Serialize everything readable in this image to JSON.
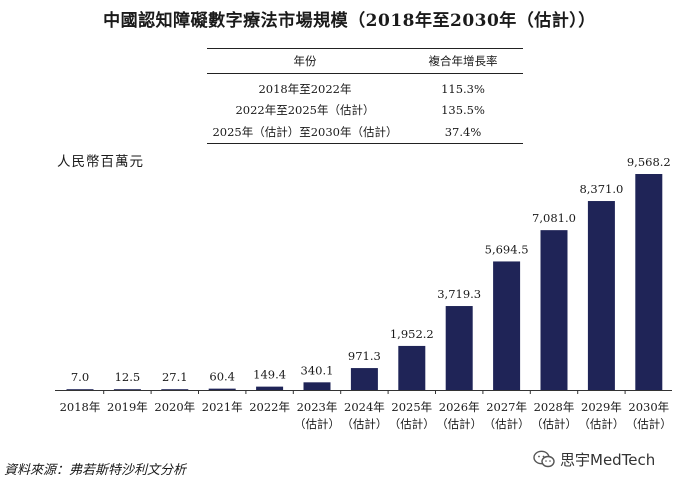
{
  "title": "中國認知障礙數字療法市場規模（2018年至2030年（估計））",
  "cagr_table": {
    "headers": [
      "年份",
      "複合年增長率"
    ],
    "rows": [
      [
        "2018年至2022年",
        "115.3%"
      ],
      [
        "2022年至2025年（估計）",
        "135.5%"
      ],
      [
        "2025年（估計）至2030年（估計）",
        "37.4%"
      ]
    ]
  },
  "unit_label": "人民幣百萬元",
  "source": "資料來源：弗若斯特沙利文分析",
  "watermark": "思宇MedTech",
  "colors": {
    "bar": "#1f2457",
    "axis": "#333333"
  },
  "chart_data": {
    "type": "bar",
    "title": "中國認知障礙數字療法市場規模（2018年至2030年（估計））",
    "ylabel": "人民幣百萬元",
    "xlabel": "",
    "categories": [
      [
        "2018年"
      ],
      [
        "2019年"
      ],
      [
        "2020年"
      ],
      [
        "2021年"
      ],
      [
        "2022年"
      ],
      [
        "2023年",
        "（估計）"
      ],
      [
        "2024年",
        "（估計）"
      ],
      [
        "2025年",
        "（估計）"
      ],
      [
        "2026年",
        "（估計）"
      ],
      [
        "2027年",
        "（估計）"
      ],
      [
        "2028年",
        "（估計）"
      ],
      [
        "2029年",
        "（估計）"
      ],
      [
        "2030年",
        "（估計）"
      ]
    ],
    "values": [
      7.0,
      12.5,
      27.1,
      60.4,
      149.4,
      340.1,
      971.3,
      1952.2,
      3719.3,
      5694.5,
      7081.0,
      8371.0,
      9568.2
    ],
    "value_labels": [
      "7.0",
      "12.5",
      "27.1",
      "60.4",
      "149.4",
      "340.1",
      "971.3",
      "1,952.2",
      "3,719.3",
      "5,694.5",
      "7,081.0",
      "8,371.0",
      "9,568.2"
    ],
    "ylim": [
      0,
      9568.2
    ],
    "grid": false,
    "legend": "none"
  }
}
